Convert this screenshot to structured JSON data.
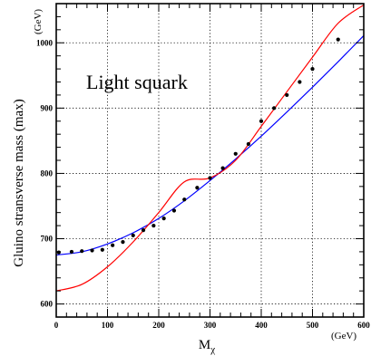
{
  "chart_data": {
    "type": "scatter",
    "title": "",
    "annotation": "Light squark",
    "xlabel": "M",
    "xlabel_sub": "χ",
    "xunit": "(GeV)",
    "ylabel": "Gluino stransverse mass (max)",
    "yunit": "(GeV)",
    "xlim": [
      0,
      600
    ],
    "ylim": [
      580,
      1060
    ],
    "grid": true,
    "x_ticks": [
      0,
      100,
      200,
      300,
      400,
      500,
      600
    ],
    "y_ticks": [
      600,
      700,
      800,
      900,
      1000
    ],
    "points": {
      "name": "",
      "color": "#000000",
      "x": [
        5,
        30,
        50,
        70,
        90,
        110,
        130,
        150,
        170,
        190,
        210,
        230,
        250,
        275,
        300,
        325,
        350,
        375,
        400,
        425,
        450,
        475,
        500,
        550
      ],
      "y": [
        679,
        680,
        681,
        682,
        683,
        690,
        695,
        705,
        713,
        720,
        731,
        743,
        760,
        778,
        793,
        808,
        830,
        845,
        880,
        900,
        920,
        940,
        960,
        1005
      ]
    },
    "curves": [
      {
        "name": "",
        "color": "#0000ff",
        "x": [
          0,
          50,
          100,
          150,
          200,
          250,
          300,
          350,
          400,
          450,
          500,
          550,
          600
        ],
        "y": [
          675,
          680,
          692,
          709,
          731,
          758,
          789,
          822,
          857,
          894,
          932,
          971,
          1011
        ]
      },
      {
        "name": "",
        "color": "#ff0000",
        "x": [
          0,
          50,
          100,
          150,
          200,
          250,
          300,
          350,
          400,
          450,
          500,
          550,
          600
        ],
        "y": [
          620,
          630,
          657,
          695,
          740,
          787,
          793,
          820,
          872,
          925,
          978,
          1030,
          1058
        ]
      }
    ]
  }
}
